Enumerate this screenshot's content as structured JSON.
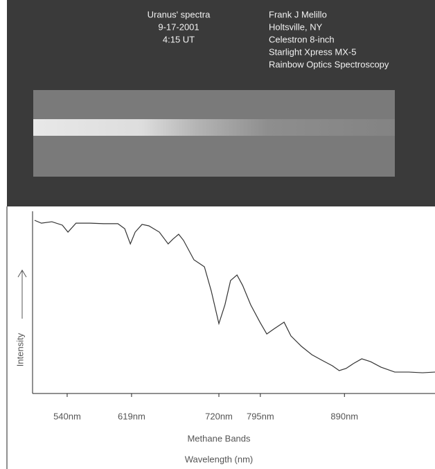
{
  "spectrum_image": {
    "caption_left": [
      "Uranus' spectra",
      "9-17-2001",
      "4:15 UT"
    ],
    "caption_right": [
      "Frank J Melillo",
      "Holtsville, NY",
      "Celestron 8-inch",
      "Starlight Xpress MX-5",
      "Rainbow Optics Spectroscopy"
    ]
  },
  "chart_data": {
    "type": "line",
    "ylabel": "Intensity",
    "x_annotation": "Methane Bands",
    "xlabel": "Wavelength (nm)",
    "color": "#333333",
    "xlim": [
      0,
      100
    ],
    "ylim": [
      0,
      100
    ],
    "xticks": [
      {
        "value": 8.6,
        "label": "540nm"
      },
      {
        "value": 24.6,
        "label": "619nm"
      },
      {
        "value": 46.3,
        "label": "720nm"
      },
      {
        "value": 56.6,
        "label": "795nm"
      },
      {
        "value": 77.5,
        "label": "890nm"
      }
    ],
    "x": [
      0.5,
      2.2,
      4.8,
      7.4,
      8.8,
      10.8,
      14.3,
      17.7,
      21.2,
      22.9,
      24.3,
      25.5,
      27.2,
      28.9,
      31.5,
      33.7,
      34.9,
      36.3,
      37.5,
      40.1,
      42.7,
      44.4,
      46.3,
      47.8,
      49.2,
      50.8,
      52.2,
      54.2,
      56.5,
      58.2,
      59.9,
      62.5,
      64.2,
      66.8,
      69.4,
      71.9,
      74.5,
      76.2,
      77.9,
      79.7,
      81.8,
      84.0,
      86.6,
      90.0,
      93.5,
      96.9,
      100
    ],
    "values": [
      96.9,
      95.3,
      96.1,
      94.2,
      90.3,
      95.3,
      95.3,
      95.0,
      95.0,
      92.2,
      83.7,
      90.3,
      94.6,
      93.8,
      90.3,
      83.7,
      86.4,
      89.1,
      85.7,
      74.8,
      70.9,
      57.4,
      39.1,
      49.6,
      63.2,
      66.3,
      60.5,
      49.6,
      39.9,
      33.3,
      36.0,
      39.9,
      32.2,
      26.4,
      21.7,
      18.6,
      15.5,
      12.8,
      14.0,
      16.7,
      19.4,
      17.8,
      14.7,
      12.0,
      12.0,
      11.6,
      12.0
    ]
  }
}
